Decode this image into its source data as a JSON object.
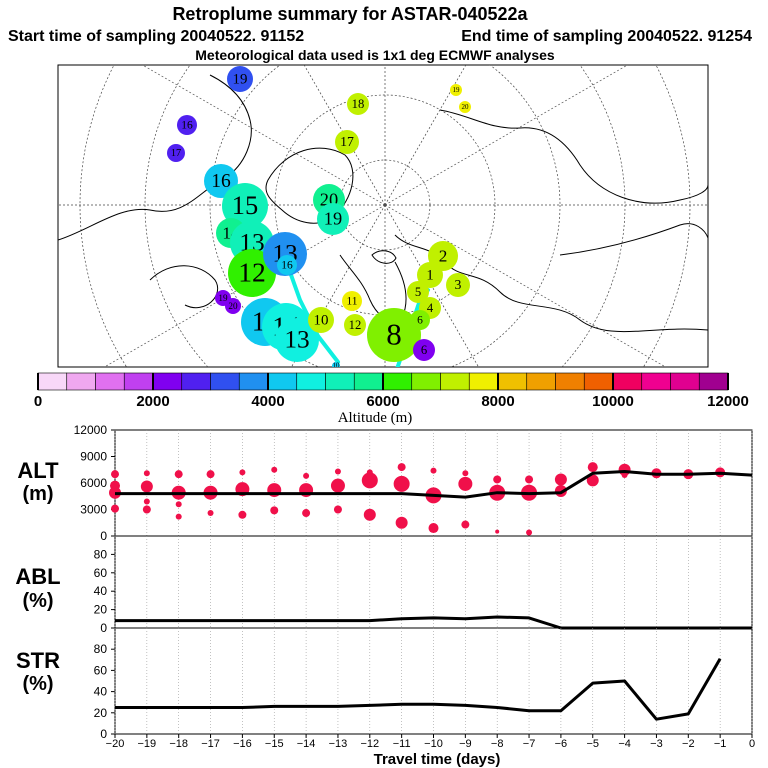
{
  "header": {
    "title": "Retroplume summary for ASTAR-040522a",
    "start_label": "Start time of sampling 20040522. 91152",
    "end_label": "End time of sampling 20040522. 91254",
    "met_label": "Meteorological data used is 1x1 deg ECMWF analyses"
  },
  "colors": {
    "altitude_scale": [
      "#f8d8f8",
      "#f0a8f0",
      "#e070f0",
      "#c040f0",
      "#8000f0",
      "#5020f0",
      "#3050f0",
      "#2090f0",
      "#10c8f0",
      "#10f0e0",
      "#10f0b8",
      "#10f090",
      "#30f000",
      "#80f000",
      "#c0f000",
      "#f0f000",
      "#f0c000",
      "#f0a000",
      "#f08000",
      "#f06000",
      "#f00060",
      "#f00090",
      "#e00090",
      "#a00090"
    ],
    "alt_dots": "#f0104a",
    "line": "#000000"
  },
  "map": {
    "plume_points": [
      {
        "label": "19",
        "alt": 3400,
        "size": 13
      },
      {
        "label": "16",
        "alt": 2800,
        "size": 10
      },
      {
        "label": "17",
        "alt": 2800,
        "size": 9
      },
      {
        "label": "16",
        "alt": 4200,
        "size": 17
      },
      {
        "label": "15",
        "alt": 5000,
        "size": 23
      },
      {
        "label": "14",
        "alt": 5600,
        "size": 15
      },
      {
        "label": "13",
        "alt": 5300,
        "size": 22
      },
      {
        "label": "12",
        "alt": 6400,
        "size": 24
      },
      {
        "label": "13",
        "alt": 3800,
        "size": 22
      },
      {
        "label": "16",
        "alt": 4000,
        "size": 10
      },
      {
        "label": "19",
        "alt": 2400,
        "size": 8
      },
      {
        "label": "20",
        "alt": 2400,
        "size": 8
      },
      {
        "label": "11",
        "alt": 4300,
        "size": 24
      },
      {
        "label": "14",
        "alt": 4600,
        "size": 24
      },
      {
        "label": "13",
        "alt": 4600,
        "size": 22
      },
      {
        "label": "10",
        "alt": 7000,
        "size": 13
      },
      {
        "label": "20",
        "alt": 5800,
        "size": 16
      },
      {
        "label": "19",
        "alt": 5400,
        "size": 16
      },
      {
        "label": "18",
        "alt": 7200,
        "size": 11
      },
      {
        "label": "17",
        "alt": 7300,
        "size": 12
      },
      {
        "label": "19",
        "alt": 7500,
        "size": 6
      },
      {
        "label": "20",
        "alt": 7500,
        "size": 6
      },
      {
        "label": "2",
        "alt": 7400,
        "size": 15
      },
      {
        "label": "1",
        "alt": 7300,
        "size": 13
      },
      {
        "label": "3",
        "alt": 7000,
        "size": 12
      },
      {
        "label": "5",
        "alt": 7100,
        "size": 11
      },
      {
        "label": "4",
        "alt": 7400,
        "size": 11
      },
      {
        "label": "6",
        "alt": 6800,
        "size": 10
      },
      {
        "label": "11",
        "alt": 7600,
        "size": 10
      },
      {
        "label": "12",
        "alt": 7400,
        "size": 11
      },
      {
        "label": "8",
        "alt": 6600,
        "size": 27
      },
      {
        "label": "6",
        "alt": 2000,
        "size": 11
      },
      {
        "label": "10",
        "alt": 4200,
        "size": 4
      }
    ]
  },
  "colorbar": {
    "tick_labels": [
      "0",
      "2000",
      "4000",
      "6000",
      "8000",
      "10000",
      "12000"
    ],
    "title": "Altitude (m)"
  },
  "panels": {
    "alt": {
      "label_top": "ALT",
      "label_bottom": "(m)"
    },
    "abl": {
      "label_top": "ABL",
      "label_bottom": "(%)"
    },
    "str": {
      "label_top": "STR",
      "label_bottom": "(%)"
    }
  },
  "chart_data": {
    "type": "line",
    "title": "Retroplume summary for ASTAR-040522a",
    "xlabel": "Travel time (days)",
    "x_tick_labels": [
      "−20",
      "−19",
      "−18",
      "−17",
      "−16",
      "−15",
      "−14",
      "−13",
      "−12",
      "−11",
      "−10",
      "−9",
      "−8",
      "−7",
      "−6",
      "−5",
      "−4",
      "−3",
      "−2",
      "−1",
      "0"
    ],
    "xlim": [
      -20,
      0
    ],
    "series": [
      {
        "name": "ALT",
        "ylabel": "ALT (m)",
        "ylim": [
          0,
          12000
        ],
        "y_tick_labels": [
          "0",
          "3000",
          "6000",
          "9000",
          "12000"
        ],
        "x": [
          -20,
          -19,
          -18,
          -17,
          -16,
          -15,
          -14,
          -13,
          -12,
          -11,
          -10,
          -9,
          -8,
          -7,
          -6,
          -5,
          -4,
          -3,
          -2,
          -1,
          0
        ],
        "values": [
          4800,
          4800,
          4800,
          4800,
          4800,
          4800,
          4800,
          4800,
          4800,
          4800,
          4600,
          4400,
          4900,
          4800,
          4900,
          7100,
          7300,
          7000,
          7000,
          7100,
          6900
        ],
        "dots": [
          {
            "x": -20,
            "y": 7000,
            "s": 4
          },
          {
            "x": -20,
            "y": 5700,
            "s": 5
          },
          {
            "x": -20,
            "y": 4900,
            "s": 6
          },
          {
            "x": -20,
            "y": 3100,
            "s": 4
          },
          {
            "x": -19,
            "y": 7100,
            "s": 3
          },
          {
            "x": -19,
            "y": 5600,
            "s": 6
          },
          {
            "x": -19,
            "y": 3900,
            "s": 3
          },
          {
            "x": -19,
            "y": 3000,
            "s": 4
          },
          {
            "x": -18,
            "y": 7000,
            "s": 4
          },
          {
            "x": -18,
            "y": 4900,
            "s": 7
          },
          {
            "x": -18,
            "y": 3600,
            "s": 3
          },
          {
            "x": -18,
            "y": 2200,
            "s": 3
          },
          {
            "x": -17,
            "y": 7000,
            "s": 4
          },
          {
            "x": -17,
            "y": 4900,
            "s": 7
          },
          {
            "x": -17,
            "y": 2600,
            "s": 3
          },
          {
            "x": -16,
            "y": 7200,
            "s": 3
          },
          {
            "x": -16,
            "y": 5300,
            "s": 7
          },
          {
            "x": -16,
            "y": 2400,
            "s": 4
          },
          {
            "x": -15,
            "y": 7500,
            "s": 3
          },
          {
            "x": -15,
            "y": 5200,
            "s": 7
          },
          {
            "x": -15,
            "y": 2900,
            "s": 4
          },
          {
            "x": -14,
            "y": 6800,
            "s": 3
          },
          {
            "x": -14,
            "y": 5200,
            "s": 7
          },
          {
            "x": -14,
            "y": 2600,
            "s": 4
          },
          {
            "x": -13,
            "y": 7300,
            "s": 3
          },
          {
            "x": -13,
            "y": 5700,
            "s": 7
          },
          {
            "x": -13,
            "y": 3000,
            "s": 4
          },
          {
            "x": -12,
            "y": 7200,
            "s": 3
          },
          {
            "x": -12,
            "y": 6300,
            "s": 8
          },
          {
            "x": -12,
            "y": 2400,
            "s": 6
          },
          {
            "x": -11,
            "y": 7800,
            "s": 4
          },
          {
            "x": -11,
            "y": 5900,
            "s": 8
          },
          {
            "x": -11,
            "y": 1500,
            "s": 6
          },
          {
            "x": -10,
            "y": 7400,
            "s": 3
          },
          {
            "x": -10,
            "y": 4600,
            "s": 8
          },
          {
            "x": -10,
            "y": 900,
            "s": 5
          },
          {
            "x": -9,
            "y": 7100,
            "s": 3
          },
          {
            "x": -9,
            "y": 5900,
            "s": 7
          },
          {
            "x": -9,
            "y": 1300,
            "s": 4
          },
          {
            "x": -8,
            "y": 6400,
            "s": 4
          },
          {
            "x": -8,
            "y": 4900,
            "s": 8
          },
          {
            "x": -8,
            "y": 500,
            "s": 2
          },
          {
            "x": -7,
            "y": 6400,
            "s": 4
          },
          {
            "x": -7,
            "y": 4900,
            "s": 8
          },
          {
            "x": -7,
            "y": 400,
            "s": 3
          },
          {
            "x": -6,
            "y": 6400,
            "s": 6
          },
          {
            "x": -6,
            "y": 5100,
            "s": 6
          },
          {
            "x": -5,
            "y": 7800,
            "s": 5
          },
          {
            "x": -5,
            "y": 6300,
            "s": 6
          },
          {
            "x": -4,
            "y": 7500,
            "s": 6
          },
          {
            "x": -4,
            "y": 6900,
            "s": 3
          },
          {
            "x": -3,
            "y": 7100,
            "s": 5
          },
          {
            "x": -2,
            "y": 7000,
            "s": 5
          },
          {
            "x": -1,
            "y": 7200,
            "s": 5
          }
        ]
      },
      {
        "name": "ABL",
        "ylabel": "ABL (%)",
        "ylim": [
          0,
          100
        ],
        "y_tick_labels": [
          "0",
          "20",
          "40",
          "60",
          "80"
        ],
        "x": [
          -20,
          -19,
          -18,
          -17,
          -16,
          -15,
          -14,
          -13,
          -12,
          -11,
          -10,
          -9,
          -8,
          -7,
          -6,
          -5,
          -4,
          -3,
          -2,
          -1,
          0
        ],
        "values": [
          8,
          8,
          8,
          8,
          8,
          8,
          8,
          8,
          8,
          10,
          11,
          10,
          12,
          11,
          0,
          0,
          0,
          0,
          0,
          0,
          0
        ]
      },
      {
        "name": "STR",
        "ylabel": "STR (%)",
        "ylim": [
          0,
          100
        ],
        "y_tick_labels": [
          "0",
          "20",
          "40",
          "60",
          "80"
        ],
        "x": [
          -20,
          -19,
          -18,
          -17,
          -16,
          -15,
          -14,
          -13,
          -12,
          -11,
          -10,
          -9,
          -8,
          -7,
          -6,
          -5,
          -4,
          -3,
          -2,
          -1
        ],
        "values": [
          25,
          25,
          25,
          25,
          25,
          26,
          26,
          26,
          27,
          28,
          28,
          27,
          25,
          22,
          22,
          48,
          50,
          14,
          19,
          71
        ]
      }
    ]
  }
}
